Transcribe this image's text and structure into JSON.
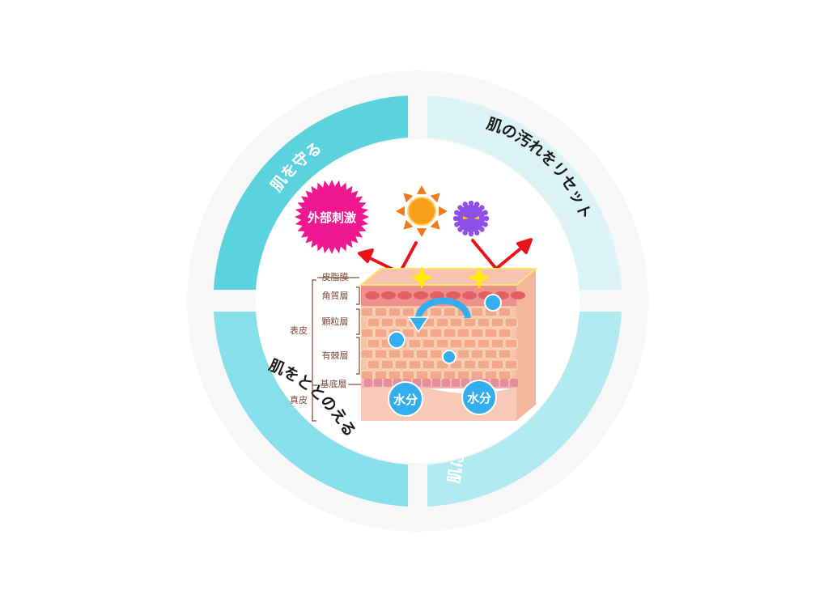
{
  "segments": {
    "top_left": {
      "label": "肌を守る",
      "color": "#5ad3df"
    },
    "top_right": {
      "label": "肌の汚れをリセット",
      "color": "#dcf4f8"
    },
    "bottom_left": {
      "label": "肌をととのえる",
      "color": "#86dfea"
    },
    "bottom_right": {
      "label": "肌にうるおいを与える",
      "color": "#b2eaf2"
    }
  },
  "hazard": {
    "label": "外部刺激",
    "color": "#f0188f"
  },
  "skin_layers": {
    "sebum": "皮脂膜",
    "stratum_corneum": "角質層",
    "granular": "顆粒層",
    "spinous": "有棘層",
    "basal": "基底層",
    "epidermis": "表皮",
    "dermis": "真皮"
  },
  "moisture": [
    "水分",
    "水分"
  ],
  "colors": {
    "sun": "#f9a01b",
    "germ": "#8e4ee8",
    "arrow": "#e8141c",
    "water": "#35aef0",
    "sparkle": "#ffea00"
  },
  "icons": [
    "sun-icon",
    "germ-icon",
    "sparkle-icon",
    "rotation-arrow-icon"
  ]
}
